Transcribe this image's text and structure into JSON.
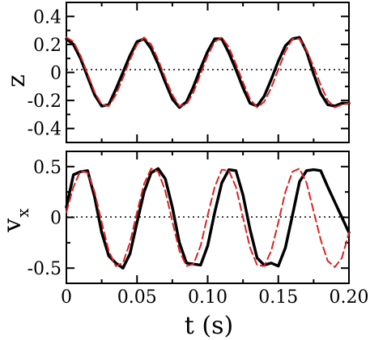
{
  "chart_data": [
    {
      "type": "line",
      "ylabel": "z",
      "xlim": [
        0,
        0.2
      ],
      "ylim": [
        -0.5,
        0.5
      ],
      "x_ticks": [
        "0",
        "0.05",
        "0.10",
        "0.15",
        "0.20"
      ],
      "y_ticks": [
        "0.4",
        "0.2",
        "0",
        "-0.2",
        "-0.4"
      ],
      "reference_line": {
        "y": 0,
        "style": "dotted"
      },
      "series": [
        {
          "color": "#000000",
          "style": "solid",
          "x": [
            0,
            0.005,
            0.01,
            0.015,
            0.02,
            0.025,
            0.03,
            0.035,
            0.04,
            0.045,
            0.05,
            0.055,
            0.06,
            0.065,
            0.07,
            0.075,
            0.08,
            0.085,
            0.09,
            0.095,
            0.1,
            0.105,
            0.11,
            0.115,
            0.12,
            0.125,
            0.13,
            0.135,
            0.14,
            0.145,
            0.15,
            0.155,
            0.16,
            0.165,
            0.17,
            0.175,
            0.18,
            0.185,
            0.19,
            0.195,
            0.2
          ],
          "y": [
            0.24,
            0.2,
            0.1,
            -0.03,
            -0.16,
            -0.24,
            -0.23,
            -0.12,
            0.0,
            0.12,
            0.22,
            0.24,
            0.17,
            0.06,
            -0.07,
            -0.19,
            -0.25,
            -0.21,
            -0.1,
            0.03,
            0.15,
            0.24,
            0.24,
            0.14,
            0.02,
            -0.11,
            -0.22,
            -0.24,
            -0.17,
            -0.05,
            0.08,
            0.19,
            0.24,
            0.25,
            0.15,
            -0.01,
            -0.15,
            -0.23,
            -0.24,
            -0.22,
            -0.22
          ]
        },
        {
          "color": "#dd2222",
          "style": "dashed",
          "x": [
            0,
            0.005,
            0.01,
            0.015,
            0.02,
            0.025,
            0.03,
            0.035,
            0.04,
            0.045,
            0.05,
            0.055,
            0.06,
            0.065,
            0.07,
            0.075,
            0.08,
            0.085,
            0.09,
            0.095,
            0.1,
            0.105,
            0.11,
            0.115,
            0.12,
            0.125,
            0.13,
            0.135,
            0.14,
            0.145,
            0.15,
            0.155,
            0.16,
            0.165,
            0.17,
            0.175,
            0.18,
            0.185,
            0.19,
            0.195,
            0.2
          ],
          "y": [
            0.25,
            0.22,
            0.12,
            -0.01,
            -0.14,
            -0.23,
            -0.24,
            -0.16,
            -0.04,
            0.09,
            0.2,
            0.25,
            0.2,
            0.09,
            -0.04,
            -0.16,
            -0.24,
            -0.23,
            -0.14,
            -0.01,
            0.12,
            0.22,
            0.25,
            0.18,
            0.06,
            -0.07,
            -0.19,
            -0.25,
            -0.21,
            -0.11,
            0.02,
            0.15,
            0.24,
            0.24,
            0.16,
            0.04,
            -0.09,
            -0.2,
            -0.25,
            -0.23,
            -0.22
          ]
        }
      ]
    },
    {
      "type": "line",
      "ylabel": "v",
      "ylabel_sub": "x",
      "xlabel": "t (s)",
      "xlim": [
        0,
        0.2
      ],
      "ylim": [
        -0.65,
        0.65
      ],
      "x_ticks": [
        "0",
        "0.05",
        "0.10",
        "0.15",
        "0.20"
      ],
      "y_ticks": [
        "0.5",
        "0",
        "-0.5"
      ],
      "reference_line": {
        "y": 0,
        "style": "dotted"
      },
      "series": [
        {
          "color": "#000000",
          "style": "solid",
          "x": [
            0,
            0.005,
            0.01,
            0.015,
            0.02,
            0.025,
            0.03,
            0.035,
            0.04,
            0.045,
            0.05,
            0.055,
            0.06,
            0.065,
            0.07,
            0.075,
            0.08,
            0.085,
            0.09,
            0.095,
            0.1,
            0.105,
            0.11,
            0.115,
            0.12,
            0.125,
            0.13,
            0.135,
            0.14,
            0.145,
            0.15,
            0.155,
            0.16,
            0.165,
            0.17,
            0.175,
            0.18,
            0.185,
            0.19,
            0.195,
            0.2
          ],
          "y": [
            0.1,
            0.42,
            0.45,
            0.46,
            0.2,
            -0.15,
            -0.38,
            -0.45,
            -0.5,
            -0.36,
            -0.05,
            0.25,
            0.44,
            0.48,
            0.38,
            0.1,
            -0.25,
            -0.45,
            -0.46,
            -0.47,
            -0.28,
            0.05,
            0.34,
            0.47,
            0.46,
            0.22,
            -0.12,
            -0.4,
            -0.47,
            -0.45,
            -0.48,
            -0.3,
            0.02,
            0.35,
            0.46,
            0.47,
            0.46,
            0.3,
            0.15,
            0.0,
            -0.15
          ]
        },
        {
          "color": "#dd2222",
          "style": "dashed",
          "x": [
            0,
            0.005,
            0.01,
            0.015,
            0.02,
            0.025,
            0.03,
            0.035,
            0.04,
            0.045,
            0.05,
            0.055,
            0.06,
            0.065,
            0.07,
            0.075,
            0.08,
            0.085,
            0.09,
            0.095,
            0.1,
            0.105,
            0.11,
            0.115,
            0.12,
            0.125,
            0.13,
            0.135,
            0.14,
            0.145,
            0.15,
            0.155,
            0.16,
            0.165,
            0.17,
            0.175,
            0.18,
            0.185,
            0.19,
            0.195,
            0.2
          ],
          "y": [
            0.05,
            0.3,
            0.46,
            0.44,
            0.25,
            -0.05,
            -0.33,
            -0.48,
            -0.45,
            -0.25,
            0.05,
            0.33,
            0.48,
            0.45,
            0.26,
            -0.04,
            -0.33,
            -0.48,
            -0.46,
            -0.28,
            0.02,
            0.3,
            0.47,
            0.46,
            0.3,
            0.0,
            -0.3,
            -0.47,
            -0.48,
            -0.33,
            -0.05,
            0.25,
            0.45,
            0.48,
            0.34,
            0.06,
            -0.22,
            -0.43,
            -0.49,
            -0.4,
            -0.15
          ]
        }
      ]
    }
  ]
}
